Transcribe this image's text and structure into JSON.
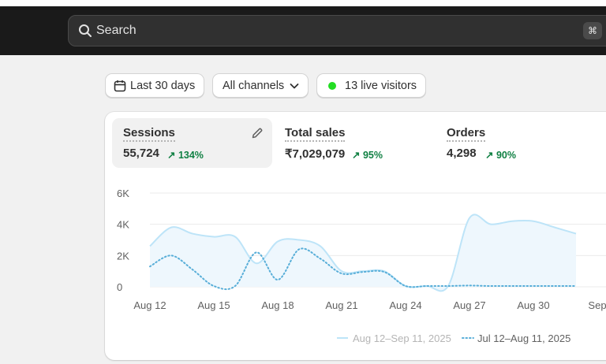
{
  "search": {
    "placeholder": "Search",
    "shortcut": "⌘"
  },
  "filters": {
    "date_range": "Last 30 days",
    "channels": "All channels",
    "live_visitors": "13 live visitors"
  },
  "metrics": [
    {
      "label": "Sessions",
      "value": "55,724",
      "delta": "134%"
    },
    {
      "label": "Total sales",
      "value": "₹7,029,079",
      "delta": "95%"
    },
    {
      "label": "Orders",
      "value": "4,298",
      "delta": "90%"
    }
  ],
  "colors": {
    "current": "#bde4f8",
    "previous": "#58aed8",
    "positive": "#108043",
    "live_dot": "#22dd22"
  },
  "chart_data": {
    "type": "line",
    "y_ticks": [
      "6K",
      "4K",
      "2K",
      "0"
    ],
    "x_ticks": [
      "Aug 12",
      "Aug 15",
      "Aug 18",
      "Aug 21",
      "Aug 24",
      "Aug 27",
      "Aug 30",
      "Sep"
    ],
    "ylim": [
      0,
      6000
    ],
    "x": [
      "Aug 12",
      "Aug 13",
      "Aug 14",
      "Aug 15",
      "Aug 16",
      "Aug 17",
      "Aug 18",
      "Aug 19",
      "Aug 20",
      "Aug 21",
      "Aug 22",
      "Aug 23",
      "Aug 24",
      "Aug 25",
      "Aug 26",
      "Aug 27",
      "Aug 28",
      "Aug 29",
      "Aug 30",
      "Aug 31",
      "Sep 1"
    ],
    "series": [
      {
        "name": "Aug 12–Sep 11, 2025",
        "style": "solid",
        "values": [
          2600,
          3800,
          3400,
          3200,
          3200,
          1500,
          2900,
          3000,
          2600,
          1000,
          1000,
          1000,
          50,
          50,
          50,
          4400,
          4000,
          4200,
          4200,
          3800,
          3400
        ]
      },
      {
        "name": "Jul 12–Aug 11, 2025",
        "style": "dotted",
        "values": [
          1300,
          2000,
          1100,
          50,
          50,
          2200,
          450,
          2400,
          1800,
          850,
          950,
          950,
          50,
          50,
          50,
          80,
          50,
          50,
          50,
          50,
          50
        ]
      }
    ],
    "grid": true,
    "legend": "bottom-right"
  }
}
